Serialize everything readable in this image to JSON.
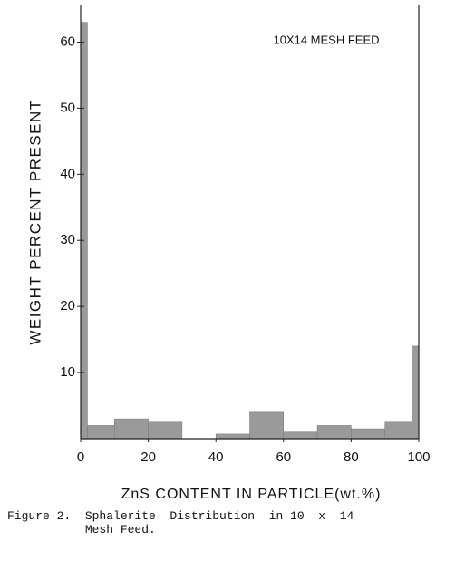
{
  "chart_data": {
    "type": "histogram",
    "annotation": "10X14 MESH FEED",
    "xlabel": "ZnS CONTENT IN PARTICLE(wt.%)",
    "ylabel": "WEIGHT PERCENT PRESENT",
    "bins": [
      0,
      2,
      10,
      20,
      30,
      40,
      50,
      60,
      70,
      80,
      90,
      98,
      100
    ],
    "values": [
      63,
      2,
      3,
      2.5,
      0,
      0.7,
      4,
      1,
      2,
      1.5,
      2.5,
      14
    ],
    "color": "#9a9a9a",
    "xlim": [
      0,
      100
    ],
    "xticks": [
      0,
      20,
      40,
      60,
      80,
      100
    ],
    "ylim": [
      0,
      65
    ],
    "yticks": [
      10,
      20,
      30,
      40,
      50,
      60
    ],
    "caption": "Figure 2.  Sphalerite  Distribution  in 10  x  14\n           Mesh Feed."
  }
}
